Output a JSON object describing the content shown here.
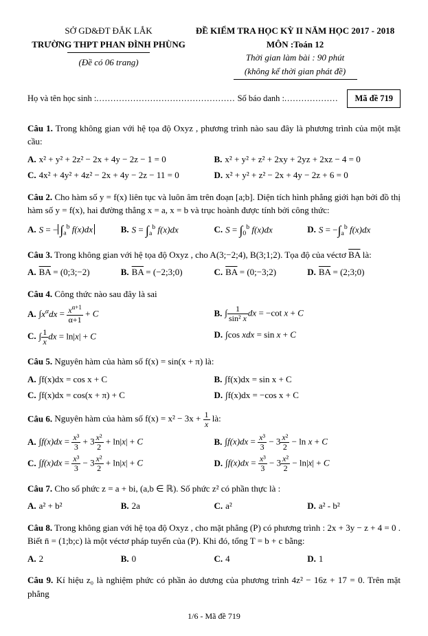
{
  "header": {
    "dept": "SỞ GD&ĐT ĐẮK LẮK",
    "school": "TRƯỜNG THPT PHAN ĐÌNH PHÙNG",
    "pages_note": "(Đề có 06 trang)",
    "exam_title": "ĐỀ KIỂM TRA HỌC KỲ II NĂM HỌC 2017 - 2018",
    "subject": "MÔN :Toán 12",
    "duration": "Thời gian làm bài : 90 phút",
    "note": "(không kể thời gian phát đề)"
  },
  "idline": {
    "name_lbl": "Họ và tên học sinh :",
    "id_lbl": "Số báo danh :",
    "code_lbl": "Mã đề 719"
  },
  "q1": {
    "label": "Câu 1.",
    "text": "Trong không gian với hệ tọa độ Oxyz , phương trình nào sau đây là phương trình của một mặt cầu:",
    "a": "x² + y² + 2z² − 2x + 4y − 2z − 1 = 0",
    "b": "x² + y² + z² + 2xy + 2yz + 2xz − 4 = 0",
    "c": "4x² + 4y² + 4z² − 2x + 4y − 2z − 11 = 0",
    "d": "x² + y² + z² − 2x + 4y − 2z + 6 = 0"
  },
  "q2": {
    "label": "Câu 2.",
    "text": "Cho hàm số y = f(x) liên tục và luôn âm trên đoạn [a;b]. Diện tích hình phẳng giới hạn bởi đồ thị hàm số y = f(x), hai đường thẳng x = a, x = b và trục hoành được tính bởi công thức:"
  },
  "q3": {
    "label": "Câu 3.",
    "text": "Trong không gian với hệ tọa độ Oxyz , cho A(3;−2;4), B(3;1;2). Tọa độ của véctơ ",
    "a": "(0;3;−2)",
    "b": "(−2;3;0)",
    "c": "(0;−3;2)",
    "d": "(2;3;0)"
  },
  "q4": {
    "label": "Câu 4.",
    "text": "Công thức nào sau đây là sai"
  },
  "q5": {
    "label": "Câu 5.",
    "text": "Nguyên hàm của hàm số f(x) = sin(x + π) là:",
    "a": "∫f(x)dx = cos x + C",
    "b": "∫f(x)dx = sin x + C",
    "c": "∫f(x)dx = cos(x + π) + C",
    "d": "∫f(x)dx = −cos x + C"
  },
  "q6": {
    "label": "Câu 6.",
    "text": "Nguyên hàm của hàm số f(x) = x² − 3x + "
  },
  "q7": {
    "label": "Câu 7.",
    "text": "Cho số phức z = a + bi, (a,b ∈ ℝ). Số phức z² có phần thực là :",
    "a": "a² + b²",
    "b": "2a",
    "c": "a²",
    "d": "a² - b²"
  },
  "q8": {
    "label": "Câu 8.",
    "text": "Trong không gian với hệ tọa độ Oxyz , cho mặt phẳng (P) có phương trình : 2x + 3y − z + 4 = 0 . Biết n̄ = (1;b;c) là một véctơ pháp tuyến của (P). Khi đó, tổng T = b + c bằng:",
    "a": "2",
    "b": "0",
    "c": "4",
    "d": "1"
  },
  "q9": {
    "label": "Câu 9.",
    "text": "Kí hiệu z₀ là nghiệm phức có phần ảo dương của phương trình 4z² − 16z + 17 = 0. Trên mặt phẳng"
  },
  "footer": "1/6 - Mã đề 719",
  "labels": {
    "A": "A.",
    "B": "B.",
    "C": "C.",
    "D": "D.",
    "BA": "BA",
    "la": " là:"
  }
}
